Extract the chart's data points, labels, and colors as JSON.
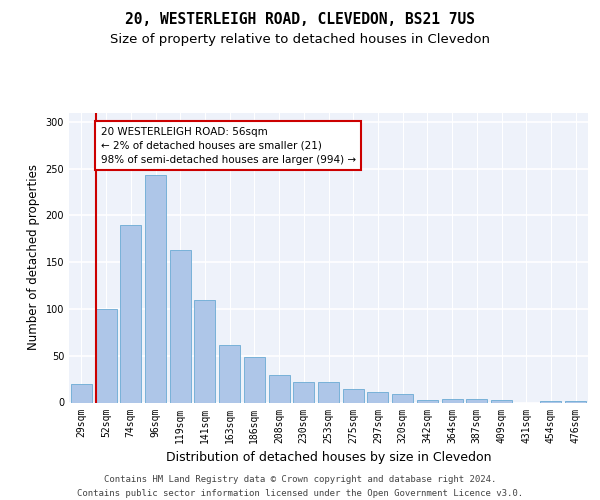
{
  "title": "20, WESTERLEIGH ROAD, CLEVEDON, BS21 7US",
  "subtitle": "Size of property relative to detached houses in Clevedon",
  "xlabel": "Distribution of detached houses by size in Clevedon",
  "ylabel": "Number of detached properties",
  "categories": [
    "29sqm",
    "52sqm",
    "74sqm",
    "96sqm",
    "119sqm",
    "141sqm",
    "163sqm",
    "186sqm",
    "208sqm",
    "230sqm",
    "253sqm",
    "275sqm",
    "297sqm",
    "320sqm",
    "342sqm",
    "364sqm",
    "387sqm",
    "409sqm",
    "431sqm",
    "454sqm",
    "476sqm"
  ],
  "values": [
    20,
    100,
    190,
    243,
    163,
    110,
    62,
    49,
    29,
    22,
    22,
    14,
    11,
    9,
    3,
    4,
    4,
    3,
    0,
    2,
    2
  ],
  "bar_color": "#aec6e8",
  "bar_edge_color": "#6aaad4",
  "marker_color": "#cc0000",
  "annotation_text": "20 WESTERLEIGH ROAD: 56sqm\n← 2% of detached houses are smaller (21)\n98% of semi-detached houses are larger (994) →",
  "annotation_box_color": "#ffffff",
  "annotation_box_edge": "#cc0000",
  "ylim": [
    0,
    310
  ],
  "yticks": [
    0,
    50,
    100,
    150,
    200,
    250,
    300
  ],
  "footer_line1": "Contains HM Land Registry data © Crown copyright and database right 2024.",
  "footer_line2": "Contains public sector information licensed under the Open Government Licence v3.0.",
  "background_color": "#eef2fa",
  "grid_color": "#ffffff",
  "title_fontsize": 10.5,
  "subtitle_fontsize": 9.5,
  "ylabel_fontsize": 8.5,
  "xlabel_fontsize": 9,
  "tick_fontsize": 7,
  "annotation_fontsize": 7.5,
  "footer_fontsize": 6.5
}
